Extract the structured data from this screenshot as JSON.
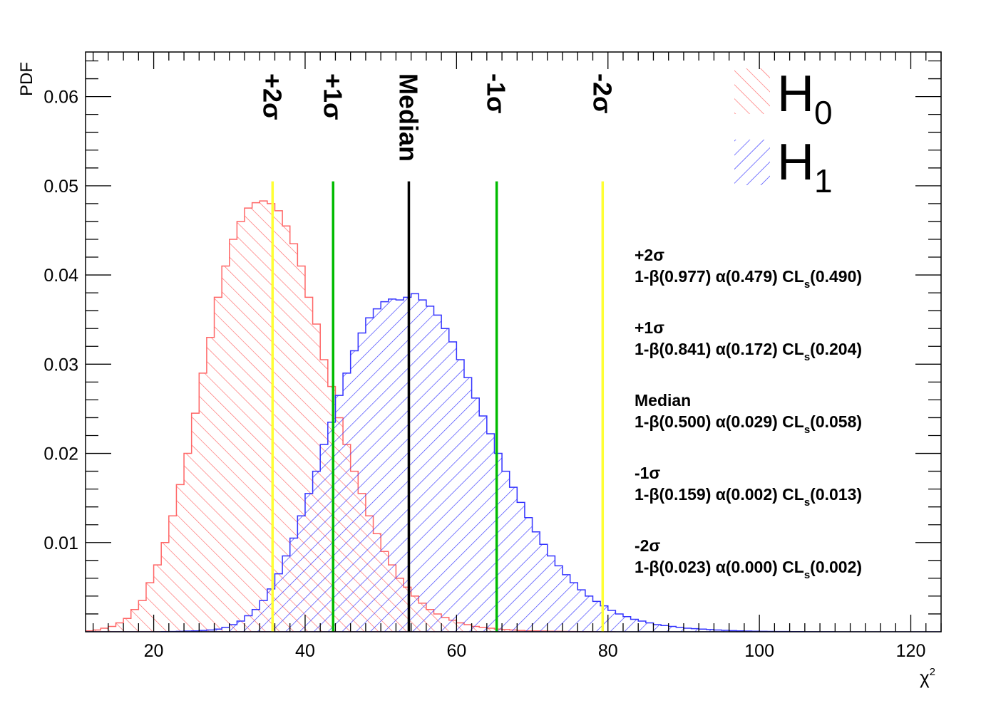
{
  "chart_data": {
    "type": "histogram",
    "title": "",
    "xlabel": "χ",
    "xlabel_sup": "2",
    "ylabel": "PDF",
    "xlim": [
      11,
      124
    ],
    "ylim": [
      0,
      0.065
    ],
    "x_ticks": [
      "20",
      "40",
      "60",
      "80",
      "100",
      "120"
    ],
    "y_ticks": [
      "0.01",
      "0.02",
      "0.03",
      "0.04",
      "0.05",
      "0.06"
    ],
    "grid": false,
    "legend_position": "top-right",
    "series": [
      {
        "name": "H",
        "subscript": "0",
        "color": "#ff6666",
        "hatch": "back-diagonal",
        "x": [
          11,
          12,
          13,
          14,
          15,
          16,
          17,
          18,
          19,
          20,
          21,
          22,
          23,
          24,
          25,
          26,
          27,
          28,
          29,
          30,
          31,
          32,
          33,
          34,
          35,
          36,
          37,
          38,
          39,
          40,
          41,
          42,
          43,
          44,
          45,
          46,
          47,
          48,
          49,
          50,
          51,
          52,
          53,
          54,
          55,
          56,
          57,
          58,
          59,
          60,
          61,
          62,
          63,
          64,
          65,
          66,
          67,
          68,
          69,
          70,
          71,
          72,
          73,
          74,
          75,
          76,
          77,
          78,
          79,
          80
        ],
        "values": [
          0.0001,
          0.0002,
          0.0004,
          0.0006,
          0.001,
          0.0015,
          0.0025,
          0.0035,
          0.0055,
          0.0075,
          0.01,
          0.013,
          0.0165,
          0.02,
          0.0245,
          0.029,
          0.033,
          0.0375,
          0.041,
          0.044,
          0.046,
          0.0475,
          0.0481,
          0.0483,
          0.048,
          0.0472,
          0.0455,
          0.0435,
          0.041,
          0.0375,
          0.0345,
          0.0305,
          0.0275,
          0.024,
          0.021,
          0.018,
          0.0155,
          0.013,
          0.011,
          0.009,
          0.0075,
          0.006,
          0.005,
          0.004,
          0.0032,
          0.0025,
          0.002,
          0.0016,
          0.0013,
          0.001,
          0.0008,
          0.0006,
          0.0005,
          0.0004,
          0.0003,
          0.00025,
          0.0002,
          0.00015,
          0.0001,
          0.0001,
          8e-05,
          6e-05,
          5e-05,
          4e-05,
          3e-05,
          2e-05,
          2e-05,
          1e-05,
          1e-05,
          0.0
        ]
      },
      {
        "name": "H",
        "subscript": "1",
        "color": "#3333ff",
        "hatch": "forward-diagonal",
        "x": [
          11,
          12,
          13,
          14,
          15,
          16,
          17,
          18,
          19,
          20,
          21,
          22,
          23,
          24,
          25,
          26,
          27,
          28,
          29,
          30,
          31,
          32,
          33,
          34,
          35,
          36,
          37,
          38,
          39,
          40,
          41,
          42,
          43,
          44,
          45,
          46,
          47,
          48,
          49,
          50,
          51,
          52,
          53,
          54,
          55,
          56,
          57,
          58,
          59,
          60,
          61,
          62,
          63,
          64,
          65,
          66,
          67,
          68,
          69,
          70,
          71,
          72,
          73,
          74,
          75,
          76,
          77,
          78,
          79,
          80,
          81,
          82,
          83,
          84,
          85,
          86,
          87,
          88,
          89,
          90,
          91,
          92,
          93,
          94,
          95,
          96,
          97,
          98,
          99,
          100,
          101,
          102,
          103,
          104,
          105,
          106,
          107,
          108,
          109,
          110,
          111,
          112,
          113,
          114,
          115,
          116,
          117,
          118,
          119,
          120,
          121,
          122,
          123
        ],
        "values": [
          0,
          0,
          0,
          0,
          0,
          0,
          0,
          0,
          0,
          0,
          2e-05,
          3e-05,
          5e-05,
          8e-05,
          0.0001,
          0.00015,
          0.0002,
          0.0003,
          0.0005,
          0.0008,
          0.0012,
          0.0018,
          0.0025,
          0.0035,
          0.0048,
          0.0065,
          0.0085,
          0.0105,
          0.013,
          0.0155,
          0.018,
          0.021,
          0.0235,
          0.0265,
          0.029,
          0.0315,
          0.0335,
          0.0352,
          0.0362,
          0.037,
          0.0373,
          0.0372,
          0.0375,
          0.0379,
          0.0372,
          0.0365,
          0.0355,
          0.034,
          0.0325,
          0.0305,
          0.0285,
          0.0262,
          0.0242,
          0.0222,
          0.02,
          0.018,
          0.0162,
          0.0145,
          0.0128,
          0.0112,
          0.0098,
          0.0085,
          0.0074,
          0.0064,
          0.0055,
          0.0047,
          0.004,
          0.0034,
          0.0029,
          0.0024,
          0.002,
          0.0017,
          0.0014,
          0.0012,
          0.001,
          0.0008,
          0.0007,
          0.0006,
          0.0005,
          0.0004,
          0.00035,
          0.0003,
          0.00025,
          0.0002,
          0.00016,
          0.00013,
          0.0001,
          8e-05,
          6e-05,
          5e-05,
          4e-05,
          3e-05,
          3e-05,
          2e-05,
          2e-05,
          1e-05,
          1e-05,
          1e-05,
          1e-05,
          0,
          0,
          0,
          0,
          0,
          0,
          0,
          0,
          0,
          0,
          0,
          0,
          0,
          0
        ]
      }
    ],
    "vertical_lines": [
      {
        "label": "+2σ",
        "x": 35.7,
        "color": "#ffff33"
      },
      {
        "label": "+1σ",
        "x": 43.7,
        "color": "#00bb00"
      },
      {
        "label": "Median",
        "x": 53.7,
        "color": "#000000"
      },
      {
        "label": "-1σ",
        "x": 65.3,
        "color": "#00bb00"
      },
      {
        "label": "-2σ",
        "x": 79.3,
        "color": "#ffff33"
      }
    ],
    "annotations": [
      {
        "title": "+2σ",
        "beta": "1-β(0.977)",
        "alpha": "α(0.479)",
        "cls": "CL",
        "cls_sub": "s",
        "cls_val": "(0.490)"
      },
      {
        "title": "+1σ",
        "beta": "1-β(0.841)",
        "alpha": "α(0.172)",
        "cls": "CL",
        "cls_sub": "s",
        "cls_val": "(0.204)"
      },
      {
        "title": "Median",
        "beta": "1-β(0.500)",
        "alpha": "α(0.029)",
        "cls": "CL",
        "cls_sub": "s",
        "cls_val": "(0.058)"
      },
      {
        "title": "-1σ",
        "beta": "1-β(0.159)",
        "alpha": "α(0.002)",
        "cls": "CL",
        "cls_sub": "s",
        "cls_val": "(0.013)"
      },
      {
        "title": "-2σ",
        "beta": "1-β(0.023)",
        "alpha": "α(0.000)",
        "cls": "CL",
        "cls_sub": "s",
        "cls_val": "(0.002)"
      }
    ]
  }
}
